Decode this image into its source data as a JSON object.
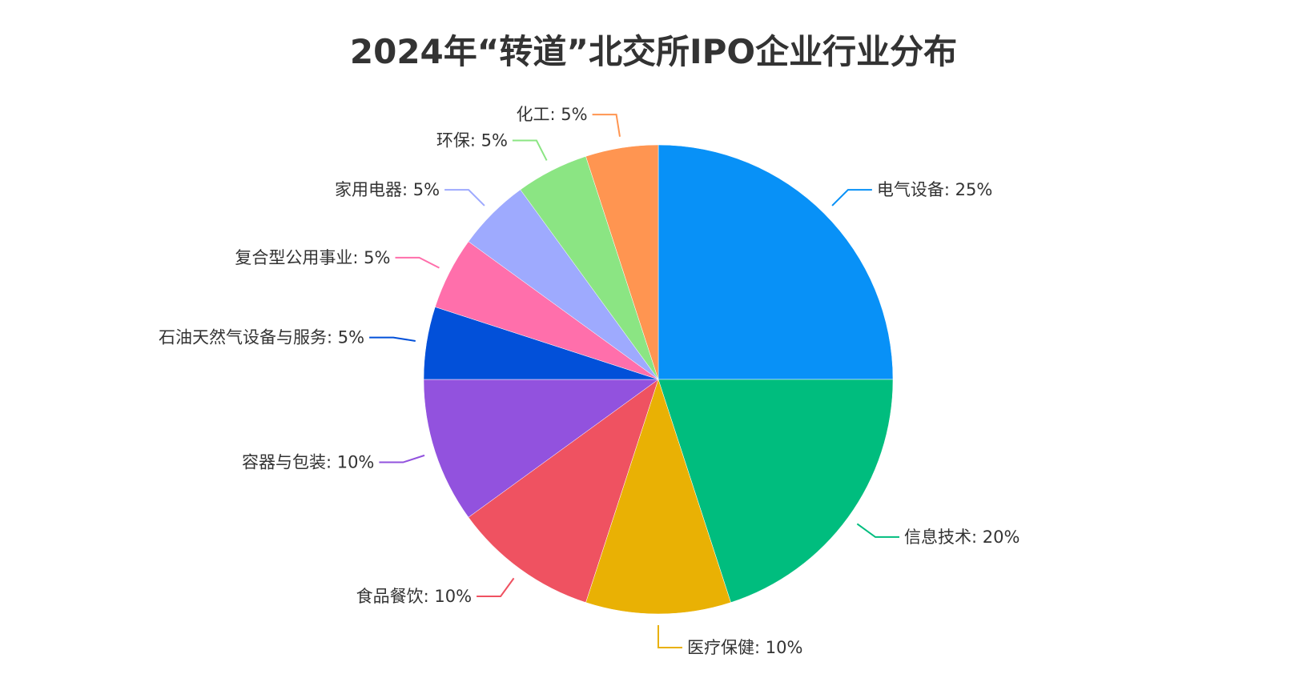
{
  "chart_data": {
    "type": "pie",
    "title": "2024年“转道”北交所IPO企业行业分布",
    "unit": "%",
    "slices": [
      {
        "label": "电气设备",
        "value": 25,
        "color": "#0891f7"
      },
      {
        "label": "信息技术",
        "value": 20,
        "color": "#00bd7e"
      },
      {
        "label": "医疗保健",
        "value": 10,
        "color": "#e9b104"
      },
      {
        "label": "食品餐饮",
        "value": 10,
        "color": "#ef5261"
      },
      {
        "label": "容器与包装",
        "value": 10,
        "color": "#9252de"
      },
      {
        "label": "石油天然气设备与服务",
        "value": 5,
        "color": "#0250d9"
      },
      {
        "label": "复合型公用事业",
        "value": 5,
        "color": "#ff6fab"
      },
      {
        "label": "家用电器",
        "value": 5,
        "color": "#9eaafe"
      },
      {
        "label": "环保",
        "value": 5,
        "color": "#8be583"
      },
      {
        "label": "化工",
        "value": 5,
        "color": "#ff9551"
      }
    ]
  }
}
